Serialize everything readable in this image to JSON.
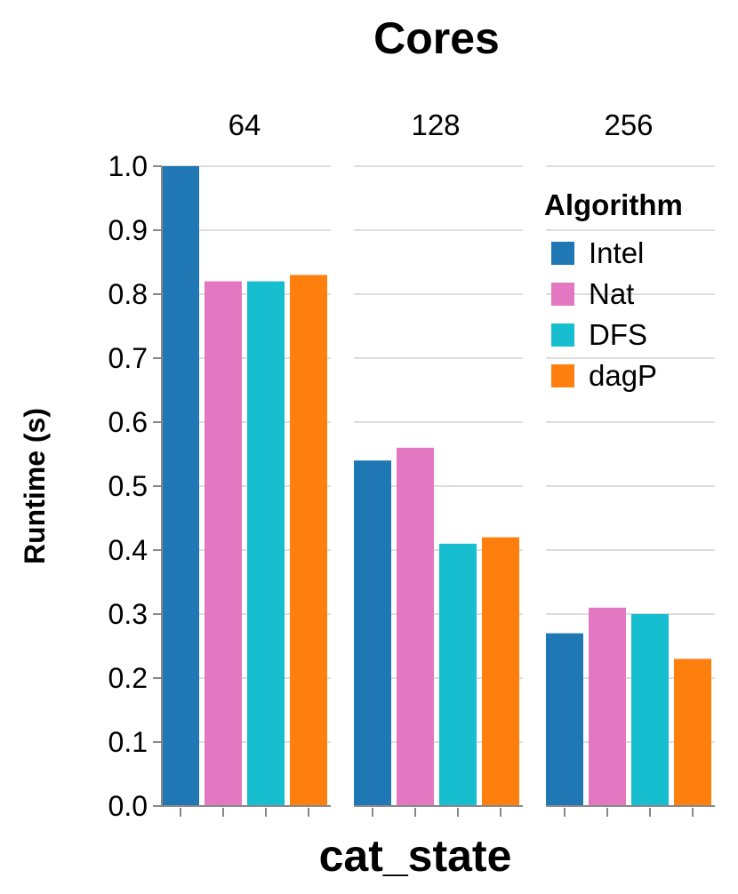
{
  "chart_data": {
    "type": "bar",
    "title": "Cores",
    "xlabel": "cat_state",
    "ylabel": "Runtime (s)",
    "ylim": [
      0,
      1.0
    ],
    "yticks": [
      "0.0",
      "0.1",
      "0.2",
      "0.3",
      "0.4",
      "0.5",
      "0.6",
      "0.7",
      "0.8",
      "0.9",
      "1.0"
    ],
    "grid": true,
    "facets": [
      "64",
      "128",
      "256"
    ],
    "legend": {
      "title": "Algorithm",
      "placement": "top-right",
      "items": [
        {
          "name": "Intel",
          "color": "#1f77b4"
        },
        {
          "name": "Nat",
          "color": "#e377c2"
        },
        {
          "name": "DFS",
          "color": "#17becf"
        },
        {
          "name": "dagP",
          "color": "#ff7f0e"
        }
      ]
    },
    "series": [
      {
        "name": "Intel",
        "values": [
          1.0,
          0.54,
          0.27
        ]
      },
      {
        "name": "Nat",
        "values": [
          0.82,
          0.56,
          0.31
        ]
      },
      {
        "name": "DFS",
        "values": [
          0.82,
          0.41,
          0.3
        ]
      },
      {
        "name": "dagP",
        "values": [
          0.83,
          0.42,
          0.23
        ]
      }
    ]
  }
}
